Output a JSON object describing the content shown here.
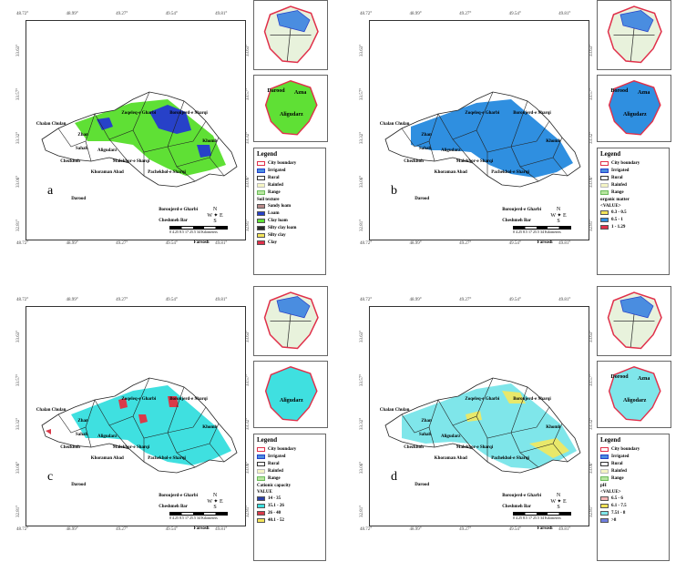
{
  "colors": {
    "soil_green": "#5fe035",
    "soil_blue": "#2741c8",
    "om_blue": "#2f8fe0",
    "cation_cyan": "#3fe0e0",
    "cation_red": "#d93a4a",
    "ph_cyan": "#7fe6ea",
    "ph_yellow": "#e8e86a",
    "city_red": "#e0304a"
  },
  "longitudes": [
    "48.72°",
    "48.99°",
    "49.27°",
    "49.54°",
    "49.81°"
  ],
  "latitudes_left": [
    "33.63°",
    "33.57°",
    "33.32°",
    "33.06°",
    "32.81°"
  ],
  "latitudes_right": [
    "33.63°",
    "33.57°",
    "33.32°",
    "33.06°",
    "32.81°"
  ],
  "place_names": [
    "Chalan Chulan",
    "Zhan",
    "Aligudarz",
    "Zoqeleq-e Gharbi",
    "Sahab",
    "Khoraman Abad",
    "Boroujerd-e Sharqi",
    "Malekhor-e Sharqi",
    "Khomh",
    "Pachekhol-e Sharqi",
    "Darood",
    "Chezkhoh",
    "Boroujerd-e Gharbi",
    "Cheshmeh Bar",
    "Farsosh"
  ],
  "panels": [
    {
      "letter": "a",
      "legend_title": "Legend",
      "base_items": [
        "City boundary",
        "Irrigated",
        "Rural",
        "Rainfed",
        "Range"
      ],
      "var_title": "Soil texture",
      "var_items": [
        {
          "label": "Sandy loam",
          "color": "#b88a8a"
        },
        {
          "label": "Loam",
          "color": "#2741c8"
        },
        {
          "label": "Clay loam",
          "color": "#5fe035"
        },
        {
          "label": "Silty clay loam",
          "color": "#2a2a2a"
        },
        {
          "label": "Silty clay",
          "color": "#f2e35a"
        },
        {
          "label": "Clay",
          "color": "#e0304a"
        }
      ],
      "inset_labels": [
        "Darood",
        "Azna",
        "Aligudarz"
      ]
    },
    {
      "letter": "b",
      "legend_title": "Legend",
      "base_items": [
        "City boundary",
        "Irrigated",
        "Rural",
        "Rainfed",
        "Range"
      ],
      "var_title": "organic matter",
      "var_subtitle": "<VALUE>",
      "var_items": [
        {
          "label": "0.3 - 0.5",
          "color": "#f2e35a"
        },
        {
          "label": "0.5 - 1",
          "color": "#2f8fe0"
        },
        {
          "label": "1 - 1.29",
          "color": "#e0304a"
        }
      ],
      "inset_labels": [
        "Borood",
        "Azna",
        "Aligudarz"
      ]
    },
    {
      "letter": "c",
      "legend_title": "Legend",
      "base_items": [
        "City boundary",
        "Irrigated",
        "Rural",
        "Rainfed",
        "Range"
      ],
      "var_title": "Cationic capacity",
      "var_subtitle": "VALUE",
      "var_items": [
        {
          "label": "14 - 35",
          "color": "#2a3fa8"
        },
        {
          "label": "35.1 - 26",
          "color": "#3fe0e0"
        },
        {
          "label": "26 - 40",
          "color": "#d93a4a"
        },
        {
          "label": "40.1 - 52",
          "color": "#f2e35a"
        }
      ],
      "inset_labels": [
        "Aligudarz"
      ]
    },
    {
      "letter": "d",
      "legend_title": "Legend",
      "base_items": [
        "City boundary",
        "Irrigated",
        "Rural",
        "Rainfed",
        "Range"
      ],
      "var_title": "pH",
      "var_subtitle": "<VALUE>",
      "var_items": [
        {
          "label": "6.5 - 6",
          "color": "#f4b5b5"
        },
        {
          "label": "6.1 - 7.5",
          "color": "#f2e35a"
        },
        {
          "label": "7.51 - 8",
          "color": "#7fe6ea"
        },
        {
          "label": ">8",
          "color": "#6f7fe0"
        }
      ],
      "inset_labels": [
        "Dorood",
        "Azna",
        "Aligodarz"
      ]
    }
  ],
  "north": {
    "n": "N",
    "e": "E",
    "s": "S",
    "w": "W"
  },
  "scale": {
    "ticks": [
      "0",
      "4.25 8.5",
      "17",
      "25.5",
      "34"
    ],
    "unit": "Kilometers"
  }
}
